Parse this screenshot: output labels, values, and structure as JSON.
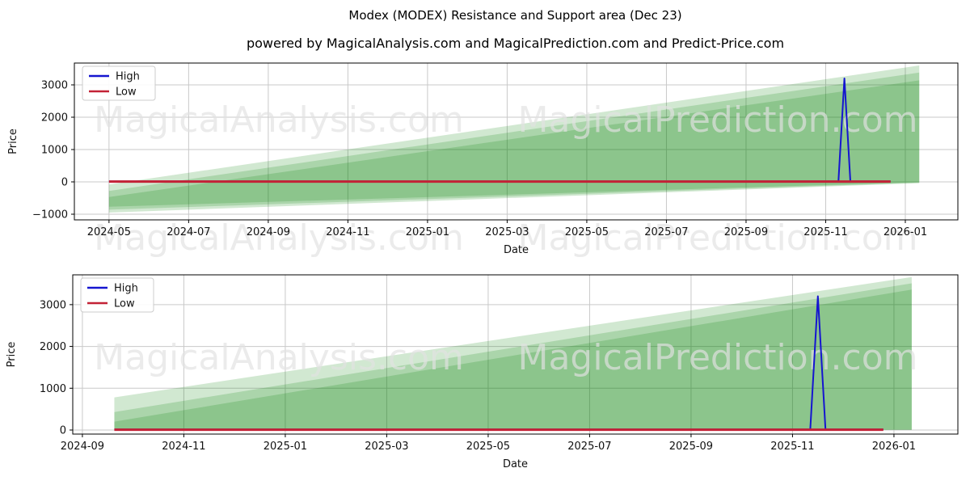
{
  "page": {
    "title": "Modex (MODEX) Resistance and Support area (Dec 23)",
    "subtitle": "powered by MagicalAnalysis.com and MagicalPrediction.com and Predict-Price.com"
  },
  "watermarks": {
    "left_text": "MagicalAnalysis.com",
    "right_text": "MagicalPrediction.com",
    "color": "#e2e2e2"
  },
  "colors": {
    "high_line": "#1515d0",
    "low_line": "#c32236",
    "area_green": "#008000",
    "grid": "#c9c9c9",
    "axis": "#000000",
    "text": "#111111"
  },
  "chart_data": [
    {
      "type": "area",
      "title": "",
      "xlabel": "Date",
      "ylabel": "Price",
      "grid": true,
      "legend_position": "upper left",
      "x_unit": "months since 2024-01",
      "xlim": [
        3.13,
        25.32
      ],
      "ylim": [
        -1175,
        3675
      ],
      "x_ticks": [
        {
          "m": 4,
          "label": "2024-05"
        },
        {
          "m": 6,
          "label": "2024-07"
        },
        {
          "m": 8,
          "label": "2024-09"
        },
        {
          "m": 10,
          "label": "2024-11"
        },
        {
          "m": 12,
          "label": "2025-01"
        },
        {
          "m": 14,
          "label": "2025-03"
        },
        {
          "m": 16,
          "label": "2025-05"
        },
        {
          "m": 18,
          "label": "2025-07"
        },
        {
          "m": 20,
          "label": "2025-09"
        },
        {
          "m": 22,
          "label": "2025-11"
        },
        {
          "m": 24,
          "label": "2026-01"
        }
      ],
      "y_ticks": [
        {
          "v": -1000,
          "label": "−1000"
        },
        {
          "v": 0,
          "label": "0"
        },
        {
          "v": 1000,
          "label": "1000"
        },
        {
          "v": 2000,
          "label": "2000"
        },
        {
          "v": 3000,
          "label": "3000"
        }
      ],
      "legend": [
        {
          "label": "High",
          "color": "#1515d0"
        },
        {
          "label": "Low",
          "color": "#c32236"
        }
      ],
      "series": [
        {
          "name": "High",
          "color": "#1515d0",
          "width": 2,
          "points": [
            [
              4.0,
              15
            ],
            [
              22.32,
              15
            ],
            [
              22.47,
              3200
            ],
            [
              22.62,
              15
            ],
            [
              23.63,
              15
            ]
          ]
        },
        {
          "name": "Low",
          "color": "#c32236",
          "width": 3,
          "points": [
            [
              4.0,
              8
            ],
            [
              23.63,
              8
            ]
          ]
        }
      ],
      "bands": [
        {
          "name": "outer",
          "color": "#008000",
          "opacity": 0.18,
          "top": [
            [
              4.0,
              -80
            ],
            [
              24.35,
              3600
            ]
          ],
          "bottom": [
            [
              4.0,
              -950
            ],
            [
              24.35,
              -40
            ]
          ]
        },
        {
          "name": "middle",
          "color": "#008000",
          "opacity": 0.18,
          "top": [
            [
              4.0,
              -280
            ],
            [
              24.35,
              3380
            ]
          ],
          "bottom": [
            [
              4.0,
              -860
            ],
            [
              24.35,
              -25
            ]
          ]
        },
        {
          "name": "core",
          "color": "#008000",
          "opacity": 0.18,
          "top": [
            [
              4.0,
              -470
            ],
            [
              24.35,
              3140
            ]
          ],
          "bottom": [
            [
              4.0,
              -770
            ],
            [
              24.35,
              -10
            ]
          ]
        }
      ]
    },
    {
      "type": "area",
      "title": "",
      "xlabel": "Date",
      "ylabel": "Price",
      "grid": true,
      "legend_position": "upper left",
      "x_unit": "months since 2024-01",
      "xlim": [
        7.81,
        25.26
      ],
      "ylim": [
        -97,
        3713
      ],
      "x_ticks": [
        {
          "m": 8,
          "label": "2024-09"
        },
        {
          "m": 10,
          "label": "2024-11"
        },
        {
          "m": 12,
          "label": "2025-01"
        },
        {
          "m": 14,
          "label": "2025-03"
        },
        {
          "m": 16,
          "label": "2025-05"
        },
        {
          "m": 18,
          "label": "2025-07"
        },
        {
          "m": 20,
          "label": "2025-09"
        },
        {
          "m": 22,
          "label": "2025-11"
        },
        {
          "m": 24,
          "label": "2026-01"
        }
      ],
      "y_ticks": [
        {
          "v": 0,
          "label": "0"
        },
        {
          "v": 1000,
          "label": "1000"
        },
        {
          "v": 2000,
          "label": "2000"
        },
        {
          "v": 3000,
          "label": "3000"
        }
      ],
      "legend": [
        {
          "label": "High",
          "color": "#1515d0"
        },
        {
          "label": "Low",
          "color": "#c32236"
        }
      ],
      "series": [
        {
          "name": "High",
          "color": "#1515d0",
          "width": 2,
          "points": [
            [
              8.63,
              15
            ],
            [
              22.35,
              15
            ],
            [
              22.5,
              3200
            ],
            [
              22.65,
              15
            ],
            [
              23.79,
              15
            ]
          ]
        },
        {
          "name": "Low",
          "color": "#c32236",
          "width": 3,
          "points": [
            [
              8.63,
              8
            ],
            [
              23.79,
              8
            ]
          ]
        }
      ],
      "bands": [
        {
          "name": "outer",
          "color": "#008000",
          "opacity": 0.18,
          "top": [
            [
              8.63,
              780
            ],
            [
              24.35,
              3660
            ]
          ],
          "bottom": [
            [
              8.63,
              5
            ],
            [
              24.35,
              5
            ]
          ]
        },
        {
          "name": "middle",
          "color": "#008000",
          "opacity": 0.18,
          "top": [
            [
              8.63,
              430
            ],
            [
              24.35,
              3510
            ]
          ],
          "bottom": [
            [
              8.63,
              5
            ],
            [
              24.35,
              5
            ]
          ]
        },
        {
          "name": "core",
          "color": "#008000",
          "opacity": 0.18,
          "top": [
            [
              8.63,
              200
            ],
            [
              24.35,
              3360
            ]
          ],
          "bottom": [
            [
              8.63,
              5
            ],
            [
              24.35,
              5
            ]
          ]
        }
      ]
    }
  ]
}
